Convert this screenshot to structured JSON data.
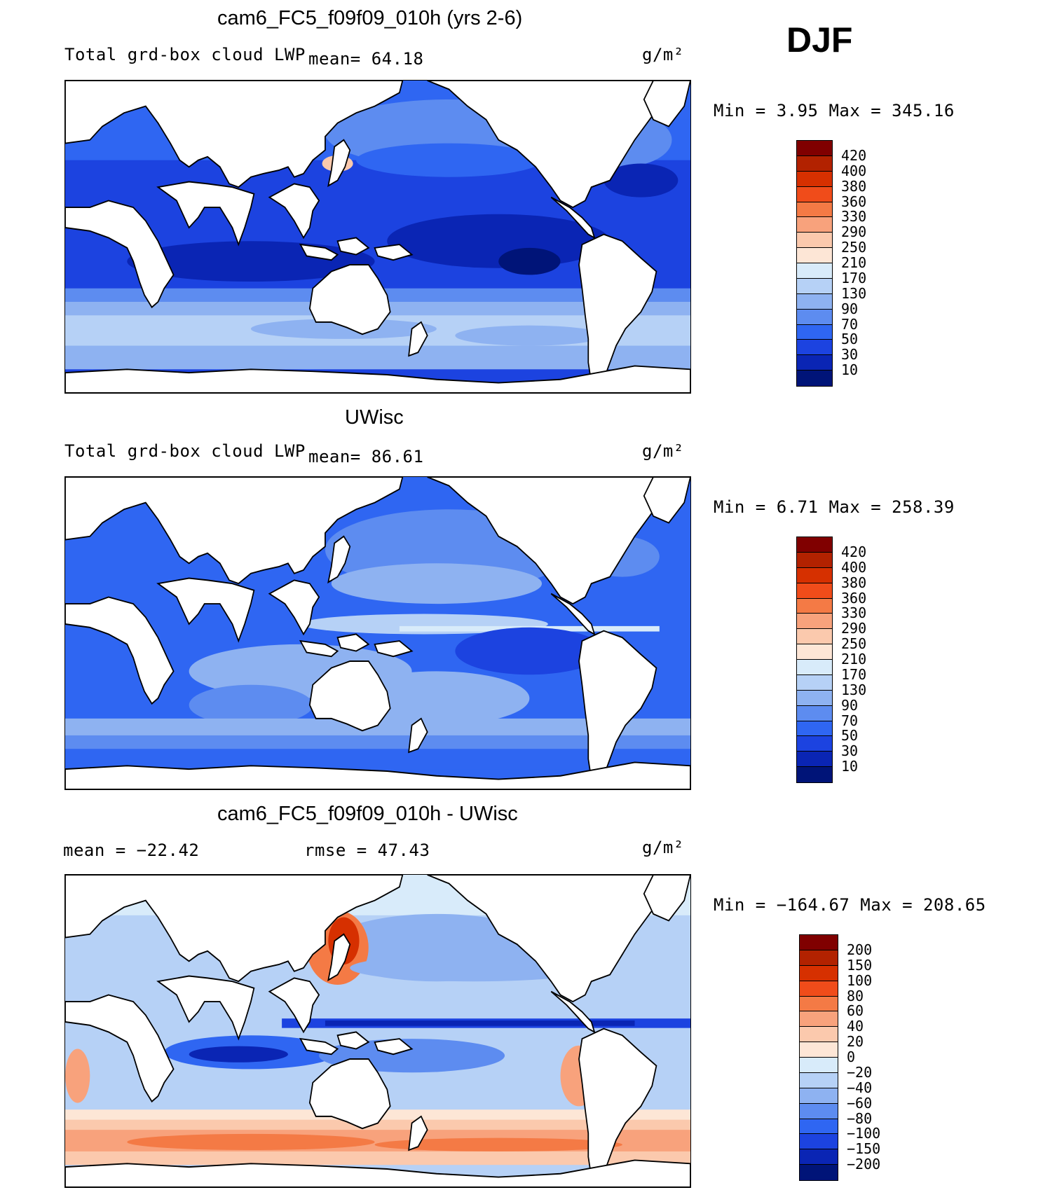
{
  "season": "DJF",
  "panels": [
    {
      "id": "model",
      "title": "cam6_FC5_f09f09_010h (yrs 2-6)",
      "left_label": "Total grd-box cloud LWP",
      "mid_label": "mean=   64.18",
      "units": "g/m²",
      "minmax": "Min  =     3.95  Max  =  345.16",
      "colorbar": {
        "labels": [
          "420",
          "400",
          "380",
          "360",
          "330",
          "290",
          "250",
          "210",
          "170",
          "130",
          "90",
          "70",
          "50",
          "30",
          "10"
        ],
        "colors": [
          "#800000",
          "#b22200",
          "#d63000",
          "#f04c1a",
          "#f47a45",
          "#f8a27c",
          "#fbc9ad",
          "#fde6d6",
          "#d8ebfa",
          "#b6d1f6",
          "#8eb2f1",
          "#5d8cf0",
          "#2f66f2",
          "#1c43e0",
          "#0a25b4",
          "#001478"
        ]
      }
    },
    {
      "id": "obs",
      "title": "UWisc",
      "left_label": "Total grd-box cloud LWP",
      "mid_label": "mean=   86.61",
      "units": "g/m²",
      "minmax": "Min  =     6.71  Max  =  258.39",
      "colorbar": {
        "labels": [
          "420",
          "400",
          "380",
          "360",
          "330",
          "290",
          "250",
          "210",
          "170",
          "130",
          "90",
          "70",
          "50",
          "30",
          "10"
        ],
        "colors": [
          "#800000",
          "#b22200",
          "#d63000",
          "#f04c1a",
          "#f47a45",
          "#f8a27c",
          "#fbc9ad",
          "#fde6d6",
          "#d8ebfa",
          "#b6d1f6",
          "#8eb2f1",
          "#5d8cf0",
          "#2f66f2",
          "#1c43e0",
          "#0a25b4",
          "#001478"
        ]
      }
    },
    {
      "id": "diff",
      "title": "cam6_FC5_f09f09_010h - UWisc",
      "left_label": "mean  =  −22.42",
      "mid_label": "rmse  =    47.43",
      "units": "g/m²",
      "minmax": "Min  = −164.67  Max  =  208.65",
      "colorbar": {
        "labels": [
          "200",
          "150",
          "100",
          "80",
          "60",
          "40",
          "20",
          "0",
          "−20",
          "−40",
          "−60",
          "−80",
          "−100",
          "−150",
          "−200"
        ],
        "colors": [
          "#800000",
          "#b22200",
          "#d63000",
          "#f04c1a",
          "#f47a45",
          "#f8a27c",
          "#fbc9ad",
          "#fde6d6",
          "#d8ebfa",
          "#b6d1f6",
          "#8eb2f1",
          "#5d8cf0",
          "#2f66f2",
          "#1c43e0",
          "#0a25b4",
          "#001478"
        ]
      }
    }
  ]
}
